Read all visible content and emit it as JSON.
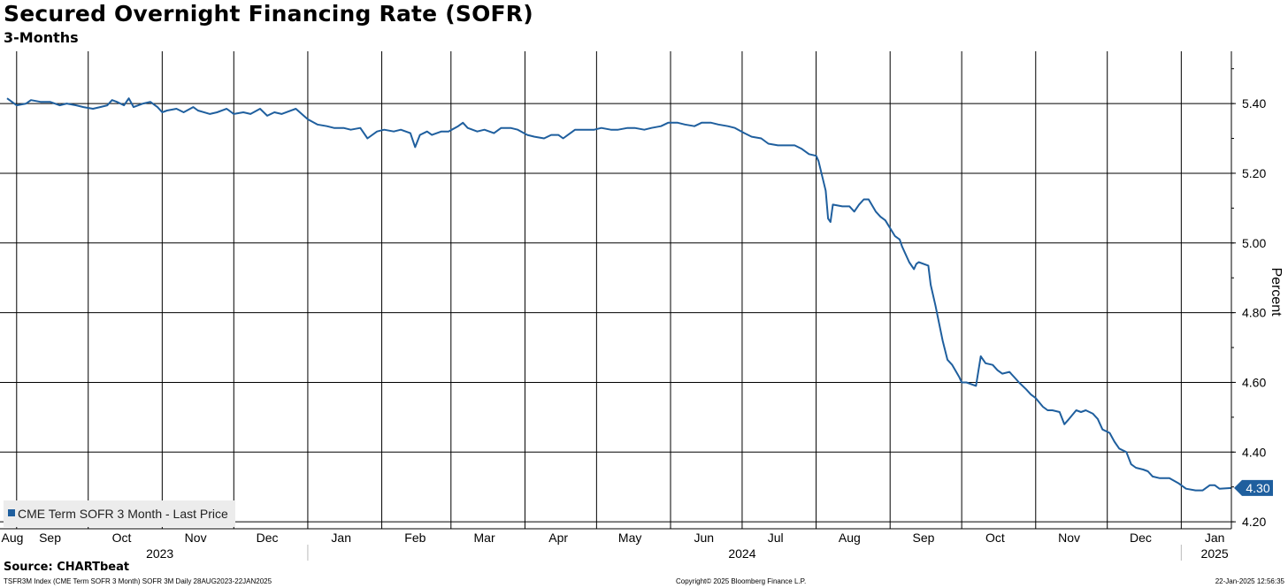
{
  "chart_data": {
    "type": "line",
    "title": "Secured Overnight Financing Rate (SOFR)",
    "subtitle": "3-Months",
    "ylabel": "Percent",
    "ylim": [
      4.18,
      5.55
    ],
    "xlim": [
      "2023-08-28",
      "2025-01-22"
    ],
    "yticks": [
      "5.40",
      "5.20",
      "5.00",
      "4.80",
      "4.60",
      "4.40",
      "4.20"
    ],
    "ytick_values": [
      5.4,
      5.2,
      5.0,
      4.8,
      4.6,
      4.4,
      4.2
    ],
    "month_labels": [
      "Aug",
      "Sep",
      "Oct",
      "Nov",
      "Dec",
      "Jan",
      "Feb",
      "Mar",
      "Apr",
      "May",
      "Jun",
      "Jul",
      "Aug",
      "Sep",
      "Oct",
      "Nov",
      "Dec",
      "Jan"
    ],
    "month_dates": [
      "2023-08-28",
      "2023-09-15",
      "2023-10-15",
      "2023-11-15",
      "2023-12-15",
      "2024-01-15",
      "2024-02-15",
      "2024-03-15",
      "2024-04-15",
      "2024-05-15",
      "2024-06-15",
      "2024-07-15",
      "2024-08-15",
      "2024-09-15",
      "2024-10-15",
      "2024-11-15",
      "2024-12-15",
      "2025-01-15"
    ],
    "grid_dates": [
      "2023-09-01",
      "2023-10-01",
      "2023-11-01",
      "2023-12-01",
      "2024-01-01",
      "2024-02-01",
      "2024-03-01",
      "2024-04-01",
      "2024-05-01",
      "2024-06-01",
      "2024-07-01",
      "2024-08-01",
      "2024-09-01",
      "2024-10-01",
      "2024-11-01",
      "2024-12-01",
      "2025-01-01"
    ],
    "year_labels": [
      {
        "label": "2023",
        "date": "2023-10-31"
      },
      {
        "label": "2024",
        "date": "2024-07-01"
      },
      {
        "label": "2025",
        "date": "2025-01-15"
      }
    ],
    "year_separators": [
      "2024-01-01",
      "2025-01-01"
    ],
    "grid": true,
    "legend_position": "bottom-left",
    "last_value_label": "4.30",
    "series": [
      {
        "name": "CME Term SOFR 3 Month - Last Price",
        "color": "#1f5f9e",
        "points": [
          [
            "2023-08-28",
            5.415
          ],
          [
            "2023-09-01",
            5.395
          ],
          [
            "2023-09-05",
            5.4
          ],
          [
            "2023-09-07",
            5.41
          ],
          [
            "2023-09-11",
            5.405
          ],
          [
            "2023-09-15",
            5.405
          ],
          [
            "2023-09-19",
            5.395
          ],
          [
            "2023-09-22",
            5.4
          ],
          [
            "2023-09-26",
            5.395
          ],
          [
            "2023-09-29",
            5.39
          ],
          [
            "2023-10-03",
            5.385
          ],
          [
            "2023-10-06",
            5.39
          ],
          [
            "2023-10-09",
            5.395
          ],
          [
            "2023-10-11",
            5.41
          ],
          [
            "2023-10-13",
            5.405
          ],
          [
            "2023-10-16",
            5.395
          ],
          [
            "2023-10-18",
            5.415
          ],
          [
            "2023-10-20",
            5.39
          ],
          [
            "2023-10-24",
            5.4
          ],
          [
            "2023-10-27",
            5.405
          ],
          [
            "2023-10-30",
            5.39
          ],
          [
            "2023-11-01",
            5.375
          ],
          [
            "2023-11-03",
            5.38
          ],
          [
            "2023-11-07",
            5.385
          ],
          [
            "2023-11-10",
            5.375
          ],
          [
            "2023-11-14",
            5.39
          ],
          [
            "2023-11-16",
            5.38
          ],
          [
            "2023-11-21",
            5.37
          ],
          [
            "2023-11-24",
            5.375
          ],
          [
            "2023-11-28",
            5.385
          ],
          [
            "2023-12-01",
            5.37
          ],
          [
            "2023-12-05",
            5.375
          ],
          [
            "2023-12-08",
            5.37
          ],
          [
            "2023-12-12",
            5.385
          ],
          [
            "2023-12-15",
            5.365
          ],
          [
            "2023-12-18",
            5.375
          ],
          [
            "2023-12-21",
            5.37
          ],
          [
            "2023-12-27",
            5.385
          ],
          [
            "2024-01-01",
            5.355
          ],
          [
            "2024-01-05",
            5.34
          ],
          [
            "2024-01-09",
            5.335
          ],
          [
            "2024-01-12",
            5.33
          ],
          [
            "2024-01-16",
            5.33
          ],
          [
            "2024-01-19",
            5.325
          ],
          [
            "2024-01-23",
            5.33
          ],
          [
            "2024-01-26",
            5.3
          ],
          [
            "2024-01-30",
            5.32
          ],
          [
            "2024-02-02",
            5.325
          ],
          [
            "2024-02-06",
            5.32
          ],
          [
            "2024-02-09",
            5.325
          ],
          [
            "2024-02-13",
            5.315
          ],
          [
            "2024-02-15",
            5.275
          ],
          [
            "2024-02-17",
            5.31
          ],
          [
            "2024-02-20",
            5.32
          ],
          [
            "2024-02-22",
            5.31
          ],
          [
            "2024-02-26",
            5.32
          ],
          [
            "2024-02-29",
            5.32
          ],
          [
            "2024-03-04",
            5.335
          ],
          [
            "2024-03-06",
            5.345
          ],
          [
            "2024-03-08",
            5.33
          ],
          [
            "2024-03-12",
            5.32
          ],
          [
            "2024-03-15",
            5.325
          ],
          [
            "2024-03-19",
            5.315
          ],
          [
            "2024-03-22",
            5.33
          ],
          [
            "2024-03-26",
            5.33
          ],
          [
            "2024-03-29",
            5.325
          ],
          [
            "2024-04-02",
            5.31
          ],
          [
            "2024-04-05",
            5.305
          ],
          [
            "2024-04-09",
            5.3
          ],
          [
            "2024-04-12",
            5.31
          ],
          [
            "2024-04-15",
            5.31
          ],
          [
            "2024-04-17",
            5.3
          ],
          [
            "2024-04-19",
            5.31
          ],
          [
            "2024-04-22",
            5.325
          ],
          [
            "2024-04-26",
            5.325
          ],
          [
            "2024-04-30",
            5.325
          ],
          [
            "2024-05-03",
            5.33
          ],
          [
            "2024-05-07",
            5.325
          ],
          [
            "2024-05-10",
            5.325
          ],
          [
            "2024-05-14",
            5.33
          ],
          [
            "2024-05-17",
            5.33
          ],
          [
            "2024-05-21",
            5.325
          ],
          [
            "2024-05-24",
            5.33
          ],
          [
            "2024-05-28",
            5.335
          ],
          [
            "2024-05-31",
            5.345
          ],
          [
            "2024-06-04",
            5.345
          ],
          [
            "2024-06-07",
            5.34
          ],
          [
            "2024-06-11",
            5.335
          ],
          [
            "2024-06-14",
            5.345
          ],
          [
            "2024-06-18",
            5.345
          ],
          [
            "2024-06-21",
            5.34
          ],
          [
            "2024-06-25",
            5.335
          ],
          [
            "2024-06-28",
            5.33
          ],
          [
            "2024-07-02",
            5.315
          ],
          [
            "2024-07-05",
            5.305
          ],
          [
            "2024-07-09",
            5.3
          ],
          [
            "2024-07-12",
            5.285
          ],
          [
            "2024-07-16",
            5.28
          ],
          [
            "2024-07-19",
            5.28
          ],
          [
            "2024-07-23",
            5.28
          ],
          [
            "2024-07-26",
            5.27
          ],
          [
            "2024-07-29",
            5.255
          ],
          [
            "2024-08-01",
            5.25
          ],
          [
            "2024-08-02",
            5.235
          ],
          [
            "2024-08-05",
            5.15
          ],
          [
            "2024-08-06",
            5.07
          ],
          [
            "2024-08-07",
            5.06
          ],
          [
            "2024-08-08",
            5.11
          ],
          [
            "2024-08-12",
            5.105
          ],
          [
            "2024-08-15",
            5.105
          ],
          [
            "2024-08-17",
            5.09
          ],
          [
            "2024-08-19",
            5.11
          ],
          [
            "2024-08-21",
            5.125
          ],
          [
            "2024-08-23",
            5.125
          ],
          [
            "2024-08-26",
            5.09
          ],
          [
            "2024-08-28",
            5.075
          ],
          [
            "2024-08-30",
            5.065
          ],
          [
            "2024-09-03",
            5.02
          ],
          [
            "2024-09-05",
            5.01
          ],
          [
            "2024-09-06",
            4.99
          ],
          [
            "2024-09-09",
            4.945
          ],
          [
            "2024-09-11",
            4.925
          ],
          [
            "2024-09-12",
            4.94
          ],
          [
            "2024-09-13",
            4.945
          ],
          [
            "2024-09-17",
            4.935
          ],
          [
            "2024-09-18",
            4.88
          ],
          [
            "2024-09-20",
            4.82
          ],
          [
            "2024-09-23",
            4.72
          ],
          [
            "2024-09-25",
            4.665
          ],
          [
            "2024-09-27",
            4.65
          ],
          [
            "2024-09-30",
            4.615
          ],
          [
            "2024-10-01",
            4.6
          ],
          [
            "2024-10-03",
            4.6
          ],
          [
            "2024-10-07",
            4.59
          ],
          [
            "2024-10-09",
            4.675
          ],
          [
            "2024-10-11",
            4.655
          ],
          [
            "2024-10-14",
            4.65
          ],
          [
            "2024-10-16",
            4.635
          ],
          [
            "2024-10-18",
            4.625
          ],
          [
            "2024-10-21",
            4.63
          ],
          [
            "2024-10-23",
            4.615
          ],
          [
            "2024-10-25",
            4.6
          ],
          [
            "2024-10-28",
            4.58
          ],
          [
            "2024-10-30",
            4.565
          ],
          [
            "2024-11-01",
            4.555
          ],
          [
            "2024-11-04",
            4.53
          ],
          [
            "2024-11-06",
            4.52
          ],
          [
            "2024-11-08",
            4.52
          ],
          [
            "2024-11-11",
            4.515
          ],
          [
            "2024-11-13",
            4.48
          ],
          [
            "2024-11-15",
            4.495
          ],
          [
            "2024-11-18",
            4.52
          ],
          [
            "2024-11-20",
            4.515
          ],
          [
            "2024-11-22",
            4.52
          ],
          [
            "2024-11-25",
            4.51
          ],
          [
            "2024-11-27",
            4.495
          ],
          [
            "2024-11-29",
            4.465
          ],
          [
            "2024-12-02",
            4.455
          ],
          [
            "2024-12-04",
            4.43
          ],
          [
            "2024-12-06",
            4.41
          ],
          [
            "2024-12-09",
            4.4
          ],
          [
            "2024-12-11",
            4.365
          ],
          [
            "2024-12-13",
            4.355
          ],
          [
            "2024-12-16",
            4.35
          ],
          [
            "2024-12-18",
            4.345
          ],
          [
            "2024-12-20",
            4.33
          ],
          [
            "2024-12-23",
            4.325
          ],
          [
            "2024-12-27",
            4.325
          ],
          [
            "2024-12-31",
            4.31
          ],
          [
            "2025-01-03",
            4.295
          ],
          [
            "2025-01-07",
            4.29
          ],
          [
            "2025-01-10",
            4.29
          ],
          [
            "2025-01-13",
            4.305
          ],
          [
            "2025-01-15",
            4.305
          ],
          [
            "2025-01-17",
            4.295
          ],
          [
            "2025-01-22",
            4.297
          ]
        ]
      }
    ]
  },
  "footer": {
    "source": "Source: CHARTbeat",
    "left": "TSFR3M Index (CME Term SOFR 3 Month) SOFR 3M  Daily 28AUG2023-22JAN2025",
    "center": "Copyright© 2025 Bloomberg Finance L.P.",
    "right": "22-Jan-2025 12:56:35"
  }
}
